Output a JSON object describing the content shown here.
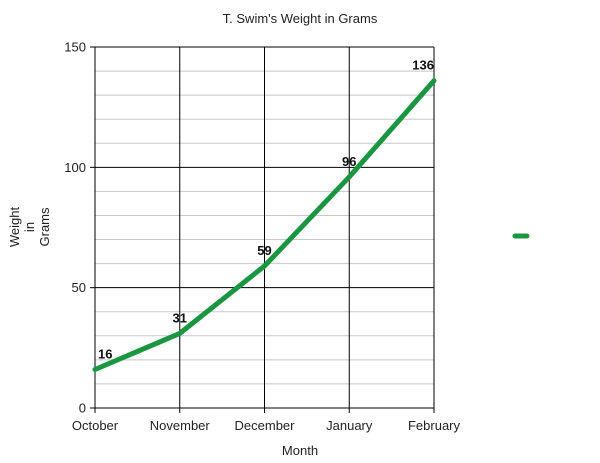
{
  "chart_data": {
    "type": "line",
    "title": "T. Swim's Weight in Grams",
    "xlabel": "Month",
    "ylabel_lines": [
      "Weight",
      "in",
      "Grams"
    ],
    "categories": [
      "October",
      "November",
      "December",
      "January",
      "February"
    ],
    "series": [
      {
        "values": [
          16,
          31,
          59,
          96,
          136
        ],
        "color": "#1a9641"
      }
    ],
    "data_labels": [
      "16",
      "31",
      "59",
      "96",
      "136"
    ],
    "ylim": [
      0,
      150
    ],
    "y_ticks": [
      0,
      50,
      100,
      150
    ],
    "y_minor_step": 10,
    "grid": true,
    "legend": "right"
  }
}
